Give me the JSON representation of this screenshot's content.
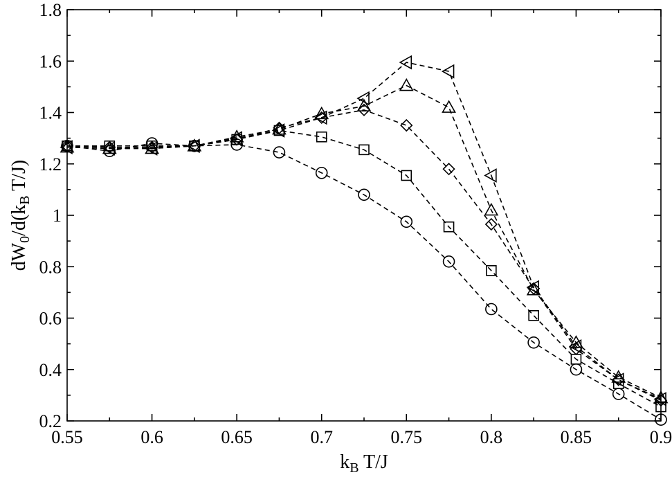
{
  "chart_data": {
    "type": "line",
    "xlabel": "k_B T/J",
    "ylabel": "dW_0/d(k_B T/J)",
    "xlim": [
      0.55,
      0.9
    ],
    "ylim": [
      0.2,
      1.8
    ],
    "xticks": [
      "0.55",
      "0.6",
      "0.65",
      "0.7",
      "0.75",
      "0.8",
      "0.85",
      "0.9"
    ],
    "xtick_values": [
      0.55,
      0.6,
      0.65,
      0.7,
      0.75,
      0.8,
      0.85,
      0.9
    ],
    "yticks": [
      "0.2",
      "0.4",
      "0.6",
      "0.8",
      "1",
      "1.2",
      "1.4",
      "1.6",
      "1.8"
    ],
    "ytick_values": [
      0.2,
      0.4,
      0.6,
      0.8,
      1.0,
      1.2,
      1.4,
      1.6,
      1.8
    ],
    "grid": false,
    "line_style": "dashed",
    "color": "#000000",
    "x": [
      0.55,
      0.575,
      0.6,
      0.625,
      0.65,
      0.675,
      0.7,
      0.725,
      0.75,
      0.775,
      0.8,
      0.825,
      0.85,
      0.875,
      0.9
    ],
    "series": [
      {
        "marker": "circle",
        "values": [
          1.27,
          1.25,
          1.28,
          1.27,
          1.275,
          1.245,
          1.165,
          1.08,
          0.975,
          0.82,
          0.635,
          0.505,
          0.4,
          0.305,
          0.205
        ]
      },
      {
        "marker": "square",
        "values": [
          1.27,
          1.27,
          1.27,
          1.27,
          1.295,
          1.33,
          1.305,
          1.255,
          1.155,
          0.955,
          0.785,
          0.61,
          0.44,
          0.345,
          0.255
        ]
      },
      {
        "marker": "diamond",
        "values": [
          1.27,
          1.265,
          1.265,
          1.27,
          1.295,
          1.34,
          1.38,
          1.41,
          1.35,
          1.18,
          0.965,
          0.715,
          0.48,
          0.36,
          0.28
        ]
      },
      {
        "marker": "triangle-up",
        "values": [
          1.265,
          1.26,
          1.26,
          1.27,
          1.305,
          1.335,
          1.395,
          1.425,
          1.505,
          1.42,
          1.02,
          0.71,
          0.505,
          0.37,
          0.29
        ]
      },
      {
        "marker": "triangle-left",
        "values": [
          1.265,
          1.26,
          1.26,
          1.27,
          1.3,
          1.33,
          1.38,
          1.455,
          1.595,
          1.56,
          1.155,
          0.72,
          0.49,
          0.36,
          0.285
        ]
      }
    ]
  }
}
